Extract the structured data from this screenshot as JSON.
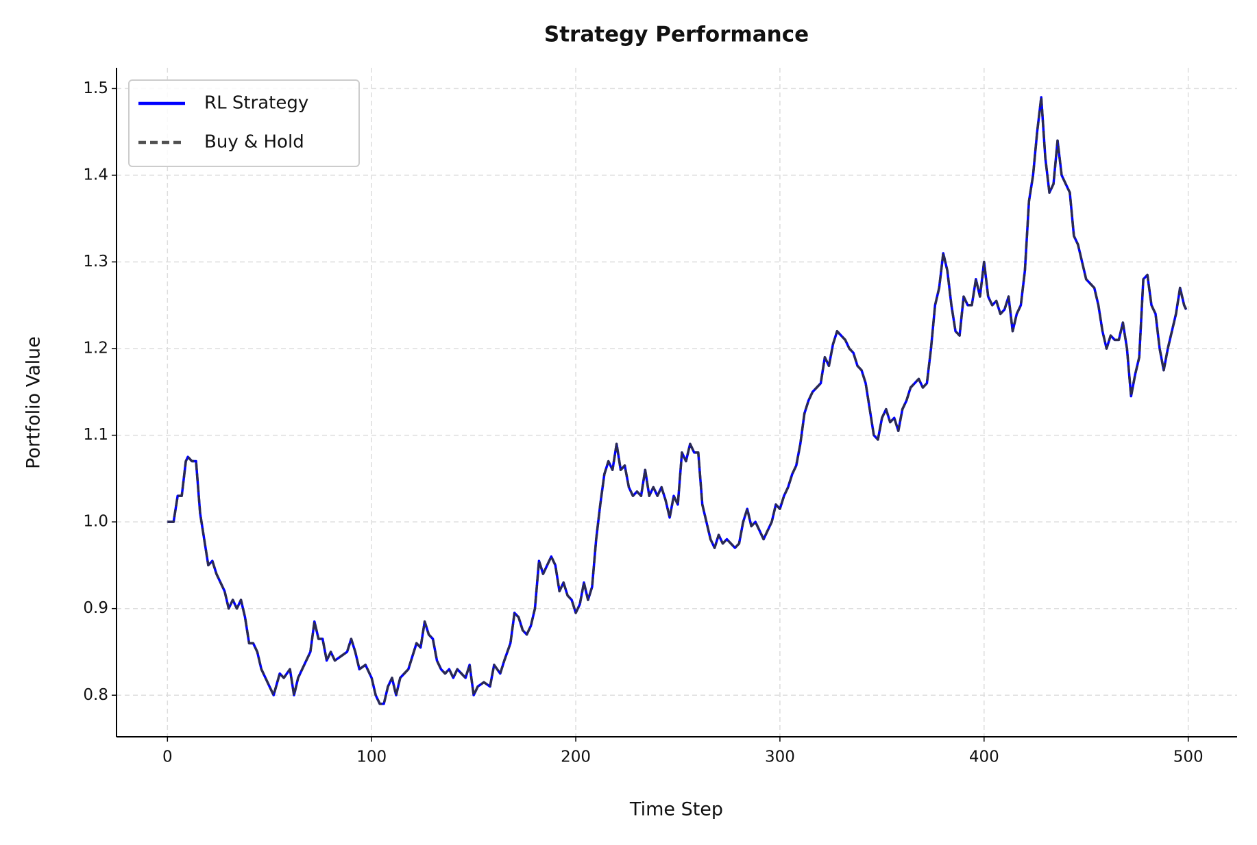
{
  "chart_data": {
    "type": "line",
    "title": "Strategy Performance",
    "x_label": "Time Step",
    "y_label": "Portfolio Value",
    "x": [
      0,
      3,
      5,
      7,
      9,
      10,
      12,
      14,
      16,
      18,
      20,
      22,
      24,
      26,
      28,
      30,
      32,
      34,
      36,
      38,
      40,
      42,
      44,
      46,
      48,
      50,
      52,
      55,
      57,
      60,
      62,
      64,
      66,
      68,
      70,
      72,
      74,
      76,
      78,
      80,
      82,
      85,
      88,
      90,
      92,
      94,
      97,
      100,
      102,
      104,
      106,
      108,
      110,
      112,
      114,
      116,
      118,
      120,
      122,
      124,
      126,
      128,
      130,
      132,
      134,
      136,
      138,
      140,
      142,
      144,
      146,
      148,
      150,
      152,
      155,
      158,
      160,
      163,
      165,
      168,
      170,
      172,
      174,
      176,
      178,
      180,
      182,
      184,
      186,
      188,
      190,
      192,
      194,
      196,
      198,
      200,
      202,
      204,
      206,
      208,
      210,
      212,
      214,
      216,
      218,
      220,
      222,
      224,
      226,
      228,
      230,
      232,
      234,
      236,
      238,
      240,
      242,
      244,
      246,
      248,
      250,
      252,
      254,
      256,
      258,
      260,
      262,
      264,
      266,
      268,
      270,
      272,
      274,
      276,
      278,
      280,
      282,
      284,
      286,
      288,
      290,
      292,
      294,
      296,
      298,
      300,
      302,
      304,
      306,
      308,
      310,
      312,
      314,
      316,
      318,
      320,
      322,
      324,
      326,
      328,
      330,
      332,
      334,
      336,
      338,
      340,
      342,
      344,
      346,
      348,
      350,
      352,
      354,
      356,
      358,
      360,
      362,
      364,
      366,
      368,
      370,
      372,
      374,
      376,
      378,
      380,
      382,
      384,
      386,
      388,
      390,
      392,
      394,
      396,
      398,
      400,
      402,
      404,
      406,
      408,
      410,
      412,
      414,
      416,
      418,
      420,
      422,
      424,
      426,
      428,
      430,
      432,
      434,
      436,
      438,
      440,
      442,
      444,
      446,
      448,
      450,
      452,
      454,
      456,
      458,
      460,
      462,
      464,
      466,
      468,
      470,
      472,
      474,
      476,
      478,
      480,
      482,
      484,
      486,
      488,
      490,
      492,
      494,
      496,
      498,
      499
    ],
    "series": [
      {
        "name": "RL Strategy",
        "color": "#0000ff",
        "style": "solid",
        "values": [
          1.0,
          1.0,
          1.03,
          1.03,
          1.07,
          1.075,
          1.07,
          1.07,
          1.01,
          0.98,
          0.95,
          0.955,
          0.94,
          0.93,
          0.92,
          0.9,
          0.91,
          0.9,
          0.91,
          0.89,
          0.86,
          0.86,
          0.85,
          0.83,
          0.82,
          0.81,
          0.8,
          0.825,
          0.82,
          0.83,
          0.8,
          0.82,
          0.83,
          0.84,
          0.85,
          0.885,
          0.865,
          0.865,
          0.84,
          0.85,
          0.84,
          0.845,
          0.85,
          0.865,
          0.85,
          0.83,
          0.835,
          0.82,
          0.8,
          0.79,
          0.79,
          0.81,
          0.82,
          0.8,
          0.82,
          0.825,
          0.83,
          0.845,
          0.86,
          0.855,
          0.885,
          0.87,
          0.865,
          0.84,
          0.83,
          0.825,
          0.83,
          0.82,
          0.83,
          0.825,
          0.82,
          0.835,
          0.8,
          0.81,
          0.815,
          0.81,
          0.835,
          0.825,
          0.84,
          0.86,
          0.895,
          0.89,
          0.875,
          0.87,
          0.88,
          0.9,
          0.955,
          0.94,
          0.95,
          0.96,
          0.95,
          0.92,
          0.93,
          0.915,
          0.91,
          0.895,
          0.905,
          0.93,
          0.91,
          0.925,
          0.98,
          1.02,
          1.055,
          1.07,
          1.06,
          1.09,
          1.06,
          1.065,
          1.04,
          1.03,
          1.035,
          1.03,
          1.06,
          1.03,
          1.04,
          1.03,
          1.04,
          1.025,
          1.005,
          1.03,
          1.02,
          1.08,
          1.07,
          1.09,
          1.08,
          1.08,
          1.02,
          1.0,
          0.98,
          0.97,
          0.985,
          0.975,
          0.98,
          0.975,
          0.97,
          0.975,
          1.0,
          1.015,
          0.995,
          1.0,
          0.99,
          0.98,
          0.99,
          1.0,
          1.02,
          1.015,
          1.03,
          1.04,
          1.055,
          1.065,
          1.09,
          1.125,
          1.14,
          1.15,
          1.155,
          1.16,
          1.19,
          1.18,
          1.205,
          1.22,
          1.215,
          1.21,
          1.2,
          1.195,
          1.18,
          1.175,
          1.16,
          1.13,
          1.1,
          1.095,
          1.12,
          1.13,
          1.115,
          1.12,
          1.105,
          1.13,
          1.14,
          1.155,
          1.16,
          1.165,
          1.155,
          1.16,
          1.2,
          1.25,
          1.27,
          1.31,
          1.29,
          1.25,
          1.22,
          1.215,
          1.26,
          1.25,
          1.25,
          1.28,
          1.26,
          1.3,
          1.26,
          1.25,
          1.255,
          1.24,
          1.245,
          1.26,
          1.22,
          1.24,
          1.25,
          1.29,
          1.37,
          1.4,
          1.45,
          1.49,
          1.42,
          1.38,
          1.39,
          1.44,
          1.4,
          1.39,
          1.38,
          1.33,
          1.32,
          1.3,
          1.28,
          1.275,
          1.27,
          1.25,
          1.22,
          1.2,
          1.215,
          1.21,
          1.21,
          1.23,
          1.2,
          1.145,
          1.17,
          1.19,
          1.28,
          1.285,
          1.25,
          1.24,
          1.2,
          1.175,
          1.2,
          1.22,
          1.24,
          1.27,
          1.25,
          1.245
        ]
      },
      {
        "name": "Buy & Hold",
        "color": "#333333",
        "style": "dashed",
        "values": [
          1.0,
          1.0,
          1.03,
          1.03,
          1.07,
          1.075,
          1.07,
          1.07,
          1.01,
          0.98,
          0.95,
          0.955,
          0.94,
          0.93,
          0.92,
          0.9,
          0.91,
          0.9,
          0.91,
          0.89,
          0.86,
          0.86,
          0.85,
          0.83,
          0.82,
          0.81,
          0.8,
          0.825,
          0.82,
          0.83,
          0.8,
          0.82,
          0.83,
          0.84,
          0.85,
          0.885,
          0.865,
          0.865,
          0.84,
          0.85,
          0.84,
          0.845,
          0.85,
          0.865,
          0.85,
          0.83,
          0.835,
          0.82,
          0.8,
          0.79,
          0.79,
          0.81,
          0.82,
          0.8,
          0.82,
          0.825,
          0.83,
          0.845,
          0.86,
          0.855,
          0.885,
          0.87,
          0.865,
          0.84,
          0.83,
          0.825,
          0.83,
          0.82,
          0.83,
          0.825,
          0.82,
          0.835,
          0.8,
          0.81,
          0.815,
          0.81,
          0.835,
          0.825,
          0.84,
          0.86,
          0.895,
          0.89,
          0.875,
          0.87,
          0.88,
          0.9,
          0.955,
          0.94,
          0.95,
          0.96,
          0.95,
          0.92,
          0.93,
          0.915,
          0.91,
          0.895,
          0.905,
          0.93,
          0.91,
          0.925,
          0.98,
          1.02,
          1.055,
          1.07,
          1.06,
          1.09,
          1.06,
          1.065,
          1.04,
          1.03,
          1.035,
          1.03,
          1.06,
          1.03,
          1.04,
          1.03,
          1.04,
          1.025,
          1.005,
          1.03,
          1.02,
          1.08,
          1.07,
          1.09,
          1.08,
          1.08,
          1.02,
          1.0,
          0.98,
          0.97,
          0.985,
          0.975,
          0.98,
          0.975,
          0.97,
          0.975,
          1.0,
          1.015,
          0.995,
          1.0,
          0.99,
          0.98,
          0.99,
          1.0,
          1.02,
          1.015,
          1.03,
          1.04,
          1.055,
          1.065,
          1.09,
          1.125,
          1.14,
          1.15,
          1.155,
          1.16,
          1.19,
          1.18,
          1.205,
          1.22,
          1.215,
          1.21,
          1.2,
          1.195,
          1.18,
          1.175,
          1.16,
          1.13,
          1.1,
          1.095,
          1.12,
          1.13,
          1.115,
          1.12,
          1.105,
          1.13,
          1.14,
          1.155,
          1.16,
          1.165,
          1.155,
          1.16,
          1.2,
          1.25,
          1.27,
          1.31,
          1.29,
          1.25,
          1.22,
          1.215,
          1.26,
          1.25,
          1.25,
          1.28,
          1.26,
          1.3,
          1.26,
          1.25,
          1.255,
          1.24,
          1.245,
          1.26,
          1.22,
          1.24,
          1.25,
          1.29,
          1.37,
          1.4,
          1.45,
          1.49,
          1.42,
          1.38,
          1.39,
          1.44,
          1.4,
          1.39,
          1.38,
          1.33,
          1.32,
          1.3,
          1.28,
          1.275,
          1.27,
          1.25,
          1.22,
          1.2,
          1.215,
          1.21,
          1.21,
          1.23,
          1.2,
          1.145,
          1.17,
          1.19,
          1.28,
          1.285,
          1.25,
          1.24,
          1.2,
          1.175,
          1.2,
          1.22,
          1.24,
          1.27,
          1.25,
          1.245
        ]
      }
    ],
    "xlim": [
      -24.95,
      523.95
    ],
    "ylim": [
      0.752,
      1.524
    ],
    "xticks": [
      0,
      100,
      200,
      300,
      400,
      500
    ],
    "yticks": [
      {
        "value": 0.8,
        "label": "0.8"
      },
      {
        "value": 0.9,
        "label": "0.9"
      },
      {
        "value": 1.0,
        "label": "1.0"
      },
      {
        "value": 1.1,
        "label": "1.1"
      },
      {
        "value": 1.2,
        "label": "1.2"
      },
      {
        "value": 1.3,
        "label": "1.3"
      },
      {
        "value": 1.4,
        "label": "1.4"
      },
      {
        "value": 1.5,
        "label": "1.5"
      }
    ],
    "grid": true,
    "legend": "upper left"
  }
}
